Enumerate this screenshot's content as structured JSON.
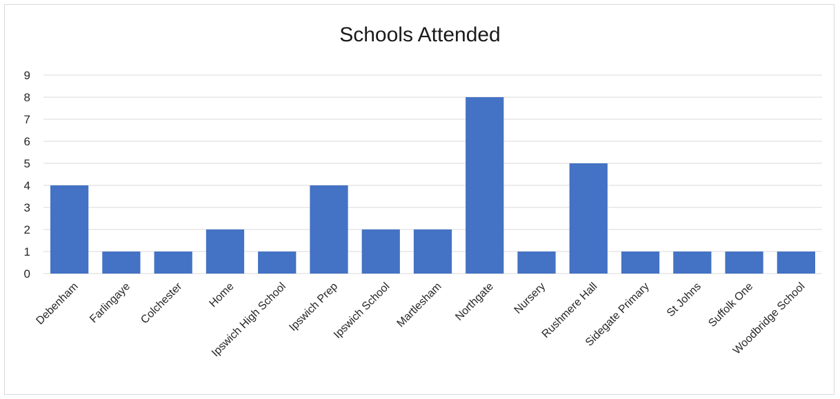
{
  "chart_data": {
    "type": "bar",
    "title": "Schools Attended",
    "xlabel": "",
    "ylabel": "",
    "ylim": [
      0,
      9
    ],
    "yticks": [
      0,
      1,
      2,
      3,
      4,
      5,
      6,
      7,
      8,
      9
    ],
    "grid": true,
    "legend": "none",
    "bar_color": "#4472c4",
    "categories": [
      "Debenham",
      "Farlingaye",
      "Colchester",
      "Home",
      "Ipswich High School",
      "Ipswich Prep",
      "Ipswich School",
      "Martlesham",
      "Northgate",
      "Nursery",
      "Rushmere Hall",
      "Sidegate Primary",
      "St Johns",
      "Suffolk One",
      "Woodbridge School"
    ],
    "values": [
      4,
      1,
      1,
      2,
      1,
      4,
      2,
      2,
      8,
      1,
      5,
      1,
      1,
      1,
      1
    ]
  }
}
